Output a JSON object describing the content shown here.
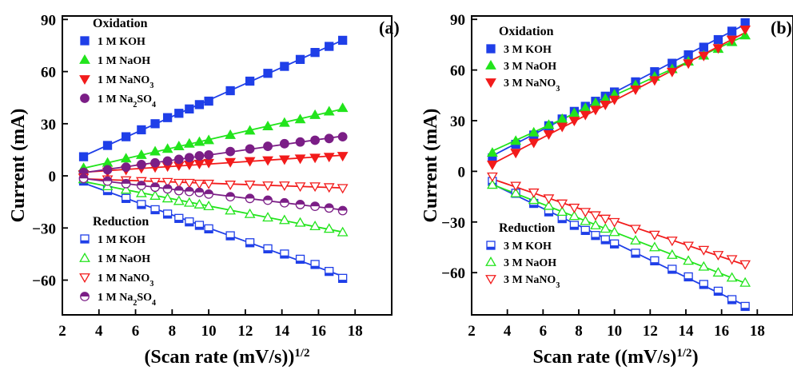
{
  "chart_data": [
    {
      "type": "scatter",
      "panel_label": "(a)",
      "xlabel": "(Scan rate (mV/s))",
      "xlabel_sup": "1/2",
      "ylabel": "Current (mA)",
      "xlim": [
        2,
        20
      ],
      "ylim": [
        -80,
        92
      ],
      "xticks": [
        2,
        4,
        6,
        8,
        10,
        12,
        14,
        16,
        18
      ],
      "yticks": [
        -60,
        -30,
        0,
        30,
        60,
        90
      ],
      "x": [
        3.16,
        4.47,
        5.48,
        6.32,
        7.07,
        7.75,
        8.37,
        8.94,
        9.49,
        10.0,
        11.18,
        12.25,
        13.23,
        14.14,
        15.0,
        15.81,
        16.58,
        17.32
      ],
      "legend_groups": [
        {
          "title": "Oxidation",
          "entries": [
            "1 M KOH",
            "1 M NaOH",
            "1 M NaNO3",
            "1 M Na2SO4"
          ]
        },
        {
          "title": "Reduction",
          "entries": [
            "1 M KOH",
            "1 M NaOH",
            "1 M NaNO3",
            "1 M Na2SO4"
          ]
        }
      ],
      "series": [
        {
          "name": "1 M KOH",
          "group": "Oxidation",
          "color": "#1f3fe8",
          "marker": "square",
          "filled": true,
          "y": [
            11,
            17.5,
            22.5,
            26.5,
            30,
            33.5,
            36,
            38.5,
            41,
            43,
            49,
            54.5,
            59,
            63,
            67,
            71,
            74.5,
            78
          ]
        },
        {
          "name": "1 M NaOH",
          "group": "Oxidation",
          "color": "#22e41c",
          "marker": "triangle-up",
          "filled": true,
          "y": [
            4.5,
            7.5,
            10,
            12,
            14,
            15.5,
            17,
            18.5,
            19.5,
            20.5,
            23.5,
            26,
            28.5,
            30.5,
            32.5,
            35,
            37,
            39
          ]
        },
        {
          "name": "1 M NaNO3",
          "group": "Oxidation",
          "color": "#f21b1b",
          "marker": "triangle-down",
          "filled": true,
          "y": [
            1,
            2.5,
            3.5,
            4.5,
            5,
            5.5,
            6,
            6.5,
            7,
            7.5,
            8,
            8.5,
            9,
            9.5,
            10,
            10.5,
            11,
            11.5
          ]
        },
        {
          "name": "1 M Na2SO4",
          "group": "Oxidation",
          "color": "#7b1e86",
          "marker": "circle",
          "filled": true,
          "y": [
            2,
            3.5,
            5,
            6.5,
            7.5,
            8.5,
            9.5,
            10.5,
            11.5,
            12,
            14,
            15.5,
            17,
            18.5,
            19.5,
            20.5,
            21.5,
            22.5
          ]
        },
        {
          "name": "1 M KOH",
          "group": "Reduction",
          "color": "#1f3fe8",
          "marker": "square",
          "filled": false,
          "y": [
            -3,
            -8.5,
            -13,
            -16.5,
            -19.5,
            -22,
            -24.5,
            -26.5,
            -28.5,
            -30.5,
            -34.5,
            -38.5,
            -42,
            -45,
            -48,
            -51,
            -55,
            -59
          ]
        },
        {
          "name": "1 M NaOH",
          "group": "Reduction",
          "color": "#22e41c",
          "marker": "triangle-up",
          "filled": false,
          "y": [
            -2,
            -6,
            -8,
            -10,
            -11.5,
            -13,
            -14.5,
            -15.5,
            -16.5,
            -17.5,
            -20,
            -22,
            -24,
            -25.5,
            -27,
            -29,
            -30.5,
            -32.5
          ]
        },
        {
          "name": "1 M NaNO3",
          "group": "Reduction",
          "color": "#f21b1b",
          "marker": "triangle-down",
          "filled": false,
          "y": [
            -1,
            -2,
            -2.5,
            -3,
            -3.5,
            -3.5,
            -4,
            -4,
            -4.5,
            -4.5,
            -5,
            -5,
            -5.5,
            -5.5,
            -6,
            -6,
            -6.5,
            -7
          ]
        },
        {
          "name": "1 M Na2SO4",
          "group": "Reduction",
          "color": "#7b1e86",
          "marker": "circle-half",
          "filled": false,
          "y": [
            -1.5,
            -3,
            -4.5,
            -5.5,
            -6.5,
            -7.5,
            -8.5,
            -9,
            -9.5,
            -10.5,
            -12,
            -13,
            -14,
            -15.5,
            -16.5,
            -17.5,
            -18.5,
            -20
          ]
        }
      ]
    },
    {
      "type": "scatter",
      "panel_label": "(b)",
      "xlabel": "Scan rate ((mV/s)",
      "xlabel_sup": "1/2",
      "xlabel_close": ")",
      "ylabel": "Current (mA)",
      "xlim": [
        2,
        20
      ],
      "ylim": [
        -85,
        92
      ],
      "xticks": [
        2,
        4,
        6,
        8,
        10,
        12,
        14,
        16,
        18
      ],
      "yticks": [
        -60,
        -30,
        0,
        30,
        60,
        90
      ],
      "x": [
        3.16,
        4.47,
        5.48,
        6.32,
        7.07,
        7.75,
        8.37,
        8.94,
        9.49,
        10.0,
        11.18,
        12.25,
        13.23,
        14.14,
        15.0,
        15.81,
        16.58,
        17.32
      ],
      "legend_groups": [
        {
          "title": "Oxidation",
          "entries": [
            "3 M KOH",
            "3 M NaOH",
            "3 M NaNO3"
          ]
        },
        {
          "title": "Reduction",
          "entries": [
            "3 M KOH",
            "3 M NaOH",
            "3 M NaNO3"
          ]
        }
      ],
      "series": [
        {
          "name": "3 M KOH",
          "group": "Oxidation",
          "color": "#1f3fe8",
          "marker": "square",
          "filled": true,
          "y": [
            8,
            16,
            21.5,
            27,
            31,
            35.5,
            38.5,
            41.5,
            44.5,
            47,
            53,
            59,
            64,
            69,
            73.5,
            78,
            83,
            88
          ]
        },
        {
          "name": "3 M NaOH",
          "group": "Oxidation",
          "color": "#22e41c",
          "marker": "triangle-up",
          "filled": true,
          "y": [
            11,
            18,
            23,
            27.5,
            31,
            34.5,
            37.5,
            40.5,
            43,
            45.5,
            51,
            56,
            60.5,
            65,
            68.5,
            72.5,
            76.5,
            80.5
          ]
        },
        {
          "name": "3 M NaNO3",
          "group": "Oxidation",
          "color": "#f21b1b",
          "marker": "triangle-down",
          "filled": true,
          "y": [
            4,
            11,
            17,
            22,
            26.5,
            30,
            33.5,
            36.5,
            39.5,
            42.5,
            48.5,
            54,
            59,
            64,
            68.5,
            73,
            78,
            84
          ]
        },
        {
          "name": "3 M KOH",
          "group": "Reduction",
          "color": "#1f3fe8",
          "marker": "square",
          "filled": false,
          "y": [
            -6,
            -13,
            -19,
            -24,
            -28,
            -32,
            -35,
            -38,
            -40.5,
            -43,
            -48.5,
            -53,
            -58,
            -62.5,
            -67,
            -71,
            -76,
            -80
          ]
        },
        {
          "name": "3 M NaOH",
          "group": "Reduction",
          "color": "#22e41c",
          "marker": "triangle-up",
          "filled": false,
          "y": [
            -8,
            -13,
            -17,
            -20.5,
            -24,
            -26.5,
            -29.5,
            -32,
            -34,
            -36,
            -41,
            -45,
            -49.5,
            -53,
            -56.5,
            -60,
            -63,
            -66
          ]
        },
        {
          "name": "3 M NaNO3",
          "group": "Reduction",
          "color": "#f21b1b",
          "marker": "triangle-down",
          "filled": false,
          "y": [
            -3,
            -8.5,
            -12.5,
            -16,
            -19,
            -21.5,
            -24,
            -26,
            -28,
            -30,
            -34,
            -37.5,
            -41,
            -44,
            -46.5,
            -49.5,
            -52,
            -55
          ]
        }
      ]
    }
  ]
}
